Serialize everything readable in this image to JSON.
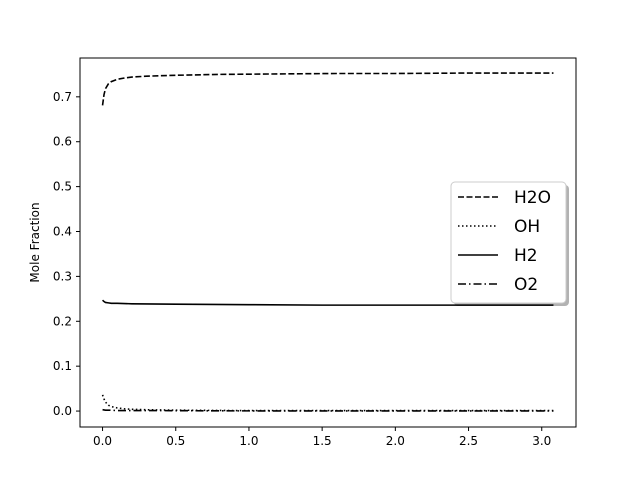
{
  "chart_data": {
    "type": "line",
    "title": "",
    "xlabel": "",
    "ylabel": "Mole Fraction",
    "xlim": [
      -0.154,
      3.234
    ],
    "ylim": [
      -0.0355,
      0.7865
    ],
    "xticks": [
      0.0,
      0.5,
      1.0,
      1.5,
      2.0,
      2.5,
      3.0
    ],
    "xtick_labels": [
      "0.0",
      "0.5",
      "1.0",
      "1.5",
      "2.0",
      "2.5",
      "3.0"
    ],
    "yticks": [
      0.0,
      0.1,
      0.2,
      0.3,
      0.4,
      0.5,
      0.6,
      0.7
    ],
    "ytick_labels": [
      "0.0",
      "0.1",
      "0.2",
      "0.3",
      "0.4",
      "0.5",
      "0.6",
      "0.7"
    ],
    "grid": false,
    "legend": {
      "position": "right",
      "entries": [
        "H2O",
        "OH",
        "H2",
        "O2"
      ]
    },
    "series": [
      {
        "name": "H2O",
        "style": "dashed",
        "color": "#000000",
        "x": [
          0.0,
          0.01,
          0.02,
          0.04,
          0.06,
          0.1,
          0.15,
          0.2,
          0.3,
          0.5,
          0.8,
          1.2,
          1.6,
          2.0,
          2.5,
          3.08
        ],
        "y": [
          0.681,
          0.705,
          0.718,
          0.729,
          0.734,
          0.739,
          0.742,
          0.744,
          0.746,
          0.748,
          0.75,
          0.751,
          0.752,
          0.752,
          0.753,
          0.753
        ]
      },
      {
        "name": "OH",
        "style": "dotted",
        "color": "#000000",
        "x": [
          0.0,
          0.01,
          0.02,
          0.04,
          0.06,
          0.1,
          0.15,
          0.2,
          0.3,
          0.5,
          1.0,
          1.5,
          2.0,
          2.5,
          3.08
        ],
        "y": [
          0.036,
          0.027,
          0.02,
          0.013,
          0.01,
          0.007,
          0.005,
          0.004,
          0.003,
          0.002,
          0.001,
          0.001,
          0.001,
          0.001,
          0.001
        ]
      },
      {
        "name": "H2",
        "style": "solid",
        "color": "#000000",
        "x": [
          0.0,
          0.01,
          0.02,
          0.04,
          0.06,
          0.1,
          0.2,
          0.5,
          1.0,
          1.5,
          2.0,
          2.5,
          3.08
        ],
        "y": [
          0.247,
          0.244,
          0.242,
          0.241,
          0.24,
          0.24,
          0.239,
          0.238,
          0.237,
          0.236,
          0.236,
          0.236,
          0.236
        ]
      },
      {
        "name": "O2",
        "style": "dashdot",
        "color": "#000000",
        "x": [
          0.0,
          0.02,
          0.05,
          0.1,
          0.2,
          0.4,
          0.8,
          1.2,
          1.6,
          2.0,
          2.5,
          3.08
        ],
        "y": [
          0.003,
          0.002,
          0.002,
          0.001,
          0.001,
          0.001,
          0.0005,
          0.0003,
          0.0003,
          0.0002,
          0.0002,
          0.0002
        ]
      }
    ]
  }
}
